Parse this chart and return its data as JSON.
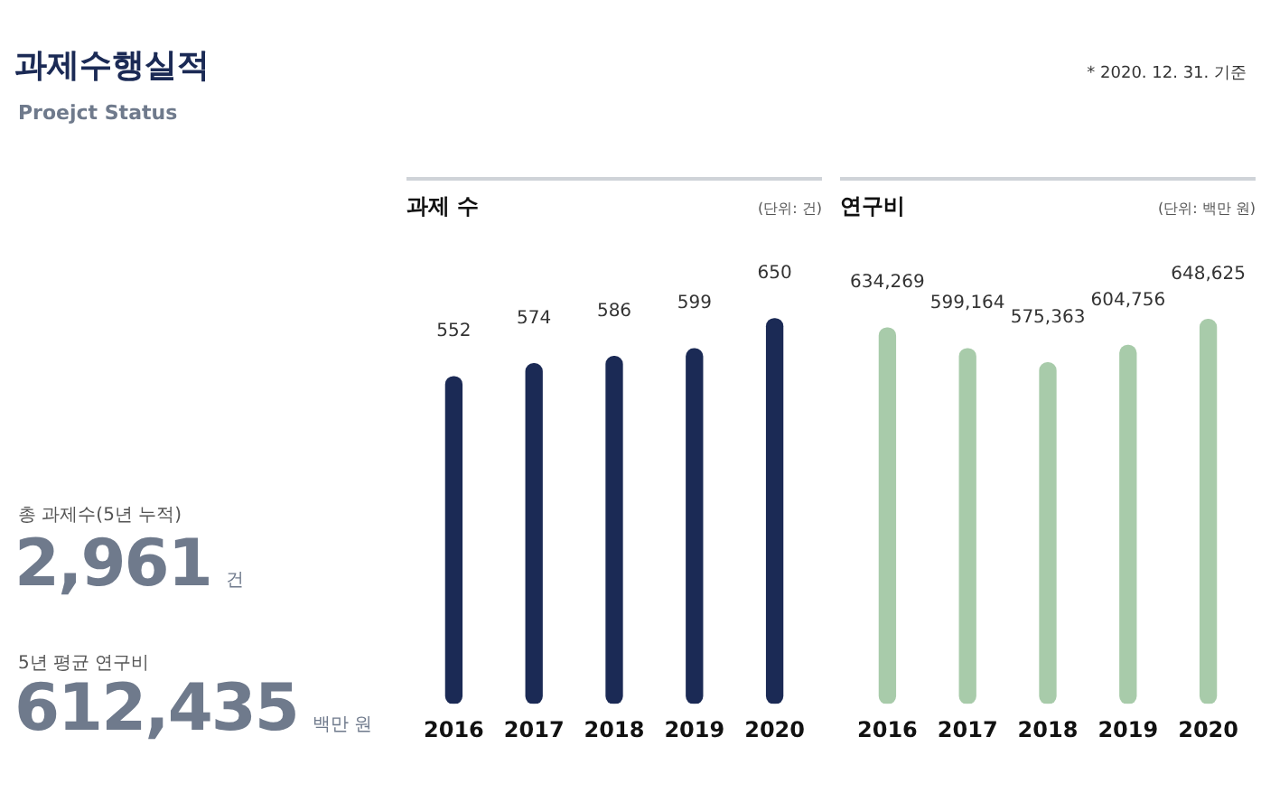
{
  "chart_data": [
    {
      "type": "other",
      "title": "과제수행실적",
      "subtitle": "Proejct Status",
      "annotations": [
        "* 2020. 12. 31. 기준",
        "총 과제수(5년 누적)",
        "2,961",
        "건",
        "5년 평균 연구비",
        "612,435",
        "백만 원"
      ]
    },
    {
      "type": "bar",
      "title": "과제 수",
      "subtitle": "(단위: 건)",
      "categories": [
        "2016",
        "2017",
        "2018",
        "2019",
        "2020"
      ],
      "values": [
        552,
        574,
        586,
        599,
        650
      ],
      "value_labels": [
        "552",
        "574",
        "586",
        "599",
        "650"
      ],
      "color": "#1b2a55",
      "tick_labels": "x",
      "grid": false,
      "legend": false
    },
    {
      "type": "bar",
      "title": "연구비",
      "subtitle": "(단위: 백만 원)",
      "categories": [
        "2016",
        "2017",
        "2018",
        "2019",
        "2020"
      ],
      "values": [
        634269,
        599164,
        575363,
        604756,
        648625
      ],
      "value_labels": [
        "634,269",
        "599,164",
        "575,363",
        "604,756",
        "648,625"
      ],
      "color": "#a8cbaa",
      "tick_labels": "x",
      "grid": false,
      "legend": false
    }
  ]
}
